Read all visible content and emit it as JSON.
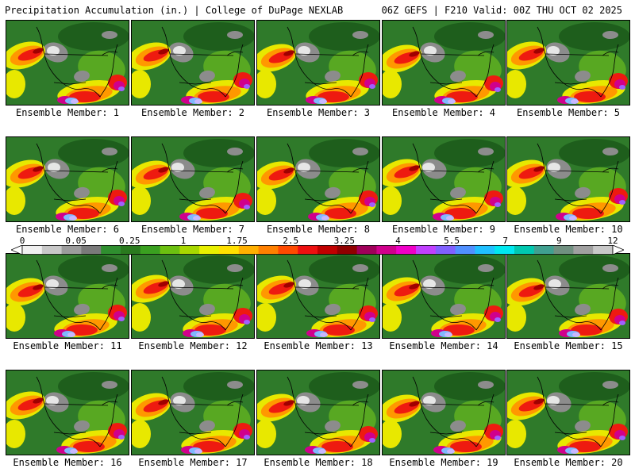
{
  "header": {
    "title": "Precipitation Accumulation (in.) | College of DuPage NEXLAB",
    "run_info": "06Z GEFS | F210 Valid: 00Z THU OCT 02 2025"
  },
  "member_label_prefix": "Ensemble Member: ",
  "members": [
    "1",
    "2",
    "3",
    "4",
    "5",
    "6",
    "7",
    "8",
    "9",
    "10",
    "11",
    "12",
    "13",
    "14",
    "15",
    "16",
    "17",
    "18",
    "19",
    "20"
  ],
  "colorbar": {
    "labels": [
      "0",
      "0.05",
      "0.25",
      "1",
      "1.75",
      "2.5",
      "3.25",
      "4",
      "5.5",
      "7",
      "9",
      "12"
    ],
    "colors": [
      "#f0f0f0",
      "#c8c8c8",
      "#9c9c9c",
      "#7a7a7a",
      "#2f8f2f",
      "#2a7a1e",
      "#3aa020",
      "#6cc010",
      "#a8d800",
      "#e8f000",
      "#ffe000",
      "#ffb000",
      "#ff8000",
      "#ff4a00",
      "#ee1010",
      "#c00000",
      "#900000",
      "#a0005a",
      "#d0008c",
      "#f000c8",
      "#c040ff",
      "#8060ff",
      "#5090ff",
      "#20c0ff",
      "#00e8f0",
      "#00c8b0",
      "#40a090",
      "#709080",
      "#a0a0a0",
      "#c8c8c8"
    ]
  },
  "map_colors": {
    "base_green": "#2f7a2a",
    "dark_green": "#1e5e1c",
    "light_green": "#58a822",
    "gray": "#8c8c8c",
    "white": "#e6e6e6",
    "yellow": "#e8e800",
    "orange": "#ff9800",
    "red": "#ee1a10",
    "dark_red": "#a00000",
    "magenta": "#d0008c",
    "purple": "#a060ff",
    "light_blue": "#80b8ff",
    "lavender": "#c8b8ff"
  }
}
